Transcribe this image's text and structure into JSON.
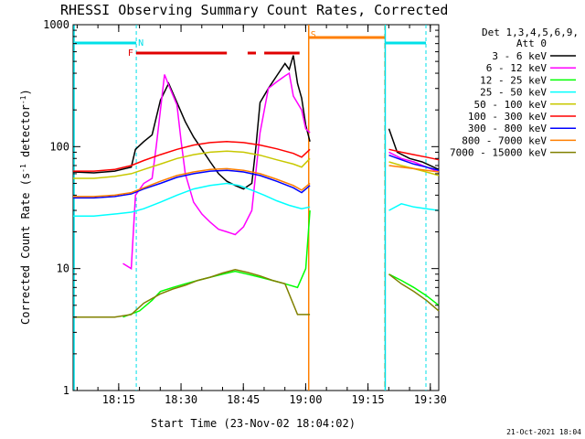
{
  "chart_data": {
    "type": "line",
    "title": "RHESSI Observing Summary Count Rates, Corrected",
    "xlabel": "Start Time (23-Nov-02 18:04:02)",
    "ylabel": "Corrected Count Rate (s",
    "ylabel_sup1": "-1",
    "ylabel_mid": " detector",
    "ylabel_sup2": "-1",
    "ylabel_end": ")",
    "y_scale": "log",
    "ylim": [
      1,
      1000
    ],
    "xlim_minutes": [
      0,
      88
    ],
    "y_ticks": [
      "1",
      "10",
      "100",
      "1000"
    ],
    "x_ticks": [
      {
        "label": "18:15",
        "minute": 10.97
      },
      {
        "label": "18:30",
        "minute": 25.97
      },
      {
        "label": "18:45",
        "minute": 40.97
      },
      {
        "label": "19:00",
        "minute": 55.97
      },
      {
        "label": "19:15",
        "minute": 70.97
      },
      {
        "label": "19:30",
        "minute": 85.97
      }
    ],
    "legend_header": [
      "Det 1,3,4,5,6,9,",
      "Att 0"
    ],
    "legend_position": "right",
    "timestamp": "21-Oct-2021 18:04",
    "annotations": [
      {
        "label": "N",
        "minute": 15.2,
        "color": "#00e0e8"
      },
      {
        "label": "F",
        "minute": 14.5,
        "color": "#e00000"
      },
      {
        "label": "S",
        "minute": 56.7,
        "color": "#ff7f00"
      }
    ],
    "gaps_minutes": [
      [
        57,
        76
      ]
    ],
    "series": [
      {
        "name": "3 - 6 keV",
        "color": "#000000",
        "points": [
          [
            0,
            62
          ],
          [
            5,
            61
          ],
          [
            10,
            63
          ],
          [
            14,
            68
          ],
          [
            15,
            95
          ],
          [
            17,
            110
          ],
          [
            19,
            125
          ],
          [
            21,
            240
          ],
          [
            23,
            330
          ],
          [
            25,
            230
          ],
          [
            27,
            160
          ],
          [
            29,
            120
          ],
          [
            31,
            95
          ],
          [
            33,
            75
          ],
          [
            35,
            60
          ],
          [
            37,
            52
          ],
          [
            39,
            48
          ],
          [
            41,
            45
          ],
          [
            43,
            50
          ],
          [
            44,
            100
          ],
          [
            45,
            230
          ],
          [
            47,
            300
          ],
          [
            49,
            380
          ],
          [
            51,
            480
          ],
          [
            52,
            430
          ],
          [
            53,
            560
          ],
          [
            54,
            330
          ],
          [
            55,
            250
          ],
          [
            56,
            150
          ],
          [
            57,
            110
          ],
          [
            76,
            140
          ],
          [
            78,
            90
          ],
          [
            81,
            80
          ],
          [
            84,
            75
          ],
          [
            88,
            65
          ]
        ]
      },
      {
        "name": "6 - 12 keV",
        "color": "#ff00ff",
        "points": [
          [
            12,
            11
          ],
          [
            14,
            10
          ],
          [
            15,
            40
          ],
          [
            17,
            50
          ],
          [
            19,
            55
          ],
          [
            20,
            100
          ],
          [
            22,
            390
          ],
          [
            23,
            320
          ],
          [
            25,
            220
          ],
          [
            26,
            110
          ],
          [
            27,
            60
          ],
          [
            29,
            35
          ],
          [
            31,
            28
          ],
          [
            33,
            24
          ],
          [
            35,
            21
          ],
          [
            37,
            20
          ],
          [
            39,
            19
          ],
          [
            41,
            22
          ],
          [
            43,
            30
          ],
          [
            45,
            130
          ],
          [
            47,
            300
          ],
          [
            49,
            340
          ],
          [
            51,
            380
          ],
          [
            52,
            400
          ],
          [
            53,
            260
          ],
          [
            55,
            200
          ],
          [
            56,
            140
          ],
          [
            57,
            130
          ],
          [
            76,
            90
          ],
          [
            79,
            80
          ],
          [
            82,
            75
          ],
          [
            85,
            68
          ],
          [
            88,
            62
          ]
        ]
      },
      {
        "name": "12 - 25 keV",
        "color": "#00ff00",
        "points": [
          [
            12,
            4
          ],
          [
            16,
            4.5
          ],
          [
            19,
            5.5
          ],
          [
            21,
            6.5
          ],
          [
            24,
            7
          ],
          [
            27,
            7.5
          ],
          [
            30,
            8
          ],
          [
            33,
            8.5
          ],
          [
            36,
            9
          ],
          [
            39,
            9.5
          ],
          [
            42,
            9
          ],
          [
            45,
            8.5
          ],
          [
            48,
            8
          ],
          [
            51,
            7.5
          ],
          [
            54,
            7
          ],
          [
            56,
            10
          ],
          [
            57,
            30
          ],
          [
            76,
            9
          ],
          [
            79,
            8
          ],
          [
            82,
            7
          ],
          [
            85,
            6
          ],
          [
            88,
            5
          ]
        ]
      },
      {
        "name": "25 - 50 keV",
        "color": "#00ffff",
        "points": [
          [
            0,
            27
          ],
          [
            5,
            27
          ],
          [
            10,
            28
          ],
          [
            14,
            29
          ],
          [
            17,
            31
          ],
          [
            21,
            35
          ],
          [
            25,
            40
          ],
          [
            29,
            45
          ],
          [
            33,
            48
          ],
          [
            37,
            50
          ],
          [
            40,
            48
          ],
          [
            43,
            44
          ],
          [
            46,
            40
          ],
          [
            49,
            36
          ],
          [
            52,
            33
          ],
          [
            55,
            31
          ],
          [
            57,
            32
          ],
          [
            76,
            30
          ],
          [
            79,
            34
          ],
          [
            82,
            32
          ],
          [
            85,
            31
          ],
          [
            88,
            30
          ]
        ]
      },
      {
        "name": "50 - 100 keV",
        "color": "#c8c800",
        "points": [
          [
            0,
            55
          ],
          [
            5,
            55
          ],
          [
            10,
            57
          ],
          [
            14,
            60
          ],
          [
            17,
            65
          ],
          [
            21,
            72
          ],
          [
            25,
            80
          ],
          [
            29,
            86
          ],
          [
            33,
            90
          ],
          [
            37,
            92
          ],
          [
            41,
            90
          ],
          [
            45,
            85
          ],
          [
            49,
            78
          ],
          [
            53,
            72
          ],
          [
            55,
            68
          ],
          [
            57,
            80
          ],
          [
            76,
            75
          ],
          [
            79,
            70
          ],
          [
            82,
            66
          ],
          [
            85,
            62
          ],
          [
            88,
            58
          ]
        ]
      },
      {
        "name": "100 - 300 keV",
        "color": "#ff0000",
        "points": [
          [
            0,
            63
          ],
          [
            5,
            63
          ],
          [
            10,
            65
          ],
          [
            14,
            70
          ],
          [
            17,
            77
          ],
          [
            21,
            86
          ],
          [
            25,
            95
          ],
          [
            29,
            103
          ],
          [
            33,
            108
          ],
          [
            37,
            110
          ],
          [
            41,
            108
          ],
          [
            45,
            103
          ],
          [
            49,
            96
          ],
          [
            53,
            88
          ],
          [
            55,
            82
          ],
          [
            57,
            95
          ],
          [
            76,
            95
          ],
          [
            79,
            90
          ],
          [
            82,
            86
          ],
          [
            85,
            82
          ],
          [
            88,
            78
          ]
        ]
      },
      {
        "name": "300 - 800 keV",
        "color": "#0000ff",
        "points": [
          [
            0,
            38
          ],
          [
            5,
            38
          ],
          [
            10,
            39
          ],
          [
            14,
            41
          ],
          [
            17,
            45
          ],
          [
            21,
            50
          ],
          [
            25,
            56
          ],
          [
            29,
            60
          ],
          [
            33,
            63
          ],
          [
            37,
            64
          ],
          [
            41,
            62
          ],
          [
            45,
            58
          ],
          [
            49,
            52
          ],
          [
            53,
            46
          ],
          [
            55,
            42
          ],
          [
            57,
            48
          ],
          [
            76,
            85
          ],
          [
            79,
            78
          ],
          [
            82,
            72
          ],
          [
            85,
            68
          ],
          [
            88,
            64
          ]
        ]
      },
      {
        "name": "800 - 7000 keV",
        "color": "#ff7f00",
        "points": [
          [
            0,
            39
          ],
          [
            5,
            39
          ],
          [
            10,
            40
          ],
          [
            14,
            42
          ],
          [
            17,
            46
          ],
          [
            21,
            52
          ],
          [
            25,
            58
          ],
          [
            29,
            62
          ],
          [
            33,
            65
          ],
          [
            37,
            66
          ],
          [
            41,
            64
          ],
          [
            45,
            60
          ],
          [
            49,
            54
          ],
          [
            53,
            48
          ],
          [
            55,
            44
          ],
          [
            57,
            50
          ],
          [
            76,
            70
          ],
          [
            79,
            68
          ],
          [
            82,
            66
          ],
          [
            85,
            64
          ],
          [
            88,
            62
          ]
        ]
      },
      {
        "name": "7000 - 15000 keV",
        "color": "#808000",
        "points": [
          [
            0,
            4
          ],
          [
            5,
            4
          ],
          [
            10,
            4
          ],
          [
            14,
            4.2
          ],
          [
            17,
            5.2
          ],
          [
            21,
            6.2
          ],
          [
            24,
            6.8
          ],
          [
            27,
            7.3
          ],
          [
            30,
            8
          ],
          [
            33,
            8.5
          ],
          [
            36,
            9.2
          ],
          [
            39,
            9.8
          ],
          [
            42,
            9.3
          ],
          [
            45,
            8.7
          ],
          [
            48,
            8
          ],
          [
            51,
            7.5
          ],
          [
            54,
            4.2
          ],
          [
            56,
            4.2
          ],
          [
            57,
            4.2
          ],
          [
            76,
            9
          ],
          [
            79,
            7.5
          ],
          [
            82,
            6.5
          ],
          [
            85,
            5.5
          ],
          [
            88,
            4.5
          ]
        ]
      }
    ]
  }
}
